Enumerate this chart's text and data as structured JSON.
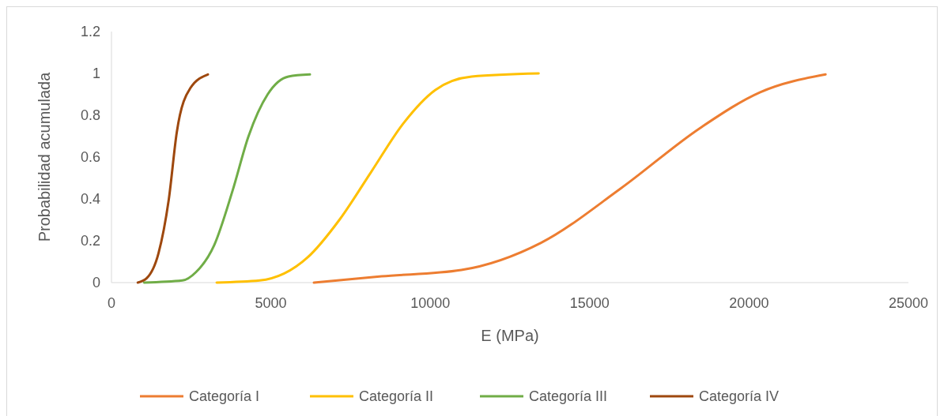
{
  "chart_data": {
    "type": "line",
    "xlabel": "E (MPa)",
    "ylabel": "Probabilidad acumulada",
    "xlim": [
      0,
      25000
    ],
    "xticks": [
      0,
      5000,
      10000,
      15000,
      20000,
      25000
    ],
    "ylim": [
      0,
      1.2
    ],
    "yticks": [
      0,
      0.2,
      0.4,
      0.6,
      0.8,
      1,
      1.2
    ],
    "grid": false,
    "legend": "bottom",
    "marker": "none",
    "line_style": "solid",
    "series": [
      {
        "name": "Categoría I",
        "color": "#ed7d31",
        "x": [
          6350,
          8475,
          10975,
          13475,
          15975,
          18475,
          20350,
          22400
        ],
        "values": [
          0,
          0.03,
          0.06,
          0.19,
          0.45,
          0.74,
          0.91,
          0.995
        ]
      },
      {
        "name": "Categoría II",
        "color": "#ffc000",
        "x": [
          3300,
          4650,
          6150,
          7150,
          8150,
          9150,
          10150,
          11300,
          13400
        ],
        "values": [
          0,
          0.01,
          0.12,
          0.3,
          0.53,
          0.76,
          0.92,
          0.985,
          1
        ]
      },
      {
        "name": "Categoría III",
        "color": "#70ad47",
        "x": [
          1025,
          2225,
          2650,
          3225,
          3800,
          4300,
          4900,
          5550,
          6225
        ],
        "values": [
          0,
          0.01,
          0.05,
          0.18,
          0.44,
          0.7,
          0.9,
          0.985,
          0.995
        ]
      },
      {
        "name": "Categoría IV",
        "color": "#9e480e",
        "x": [
          825,
          1100,
          1475,
          1800,
          2050,
          2475,
          3025
        ],
        "values": [
          0,
          0.02,
          0.14,
          0.4,
          0.72,
          0.93,
          0.995
        ]
      }
    ]
  }
}
